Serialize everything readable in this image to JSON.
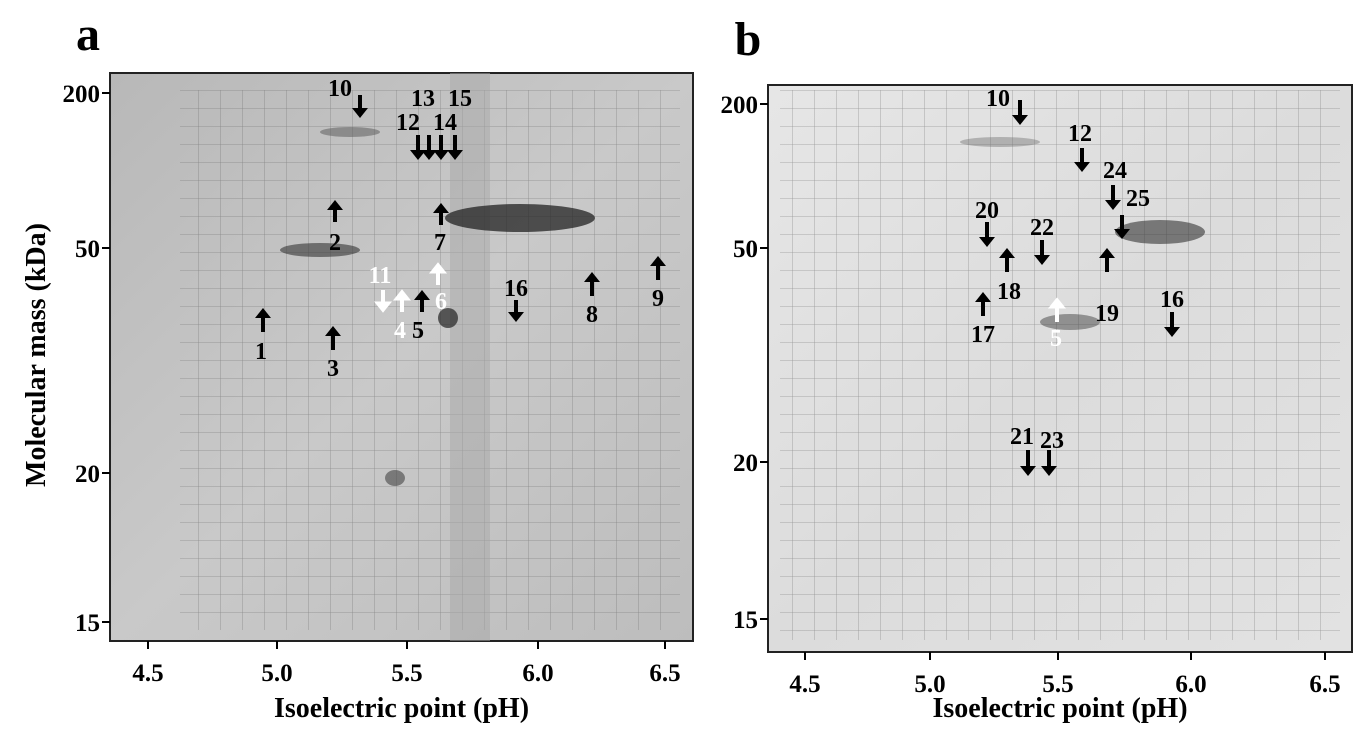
{
  "panels": [
    {
      "label": "a",
      "y_label": "Molecular mass (kDa)",
      "x_label": "Isoelectric point (pH)",
      "xticks": [
        "4.5",
        "5.0",
        "5.5",
        "6.0",
        "6.5"
      ],
      "yticks": [
        "200",
        "50",
        "20",
        "15"
      ],
      "spots": [
        "10",
        "13",
        "15",
        "12",
        "14",
        "2",
        "7",
        "11",
        "6",
        "4",
        "5",
        "16",
        "8",
        "9",
        "1",
        "3"
      ]
    },
    {
      "label": "b",
      "y_label": null,
      "x_label": "Isoelectric point (pH)",
      "xticks": [
        "4.5",
        "5.0",
        "5.5",
        "6.0",
        "6.5"
      ],
      "yticks": [
        "200",
        "50",
        "20",
        "15"
      ],
      "spots": [
        "10",
        "12",
        "24",
        "25",
        "20",
        "22",
        "18",
        "17",
        "5",
        "19",
        "16",
        "21",
        "23"
      ]
    }
  ]
}
